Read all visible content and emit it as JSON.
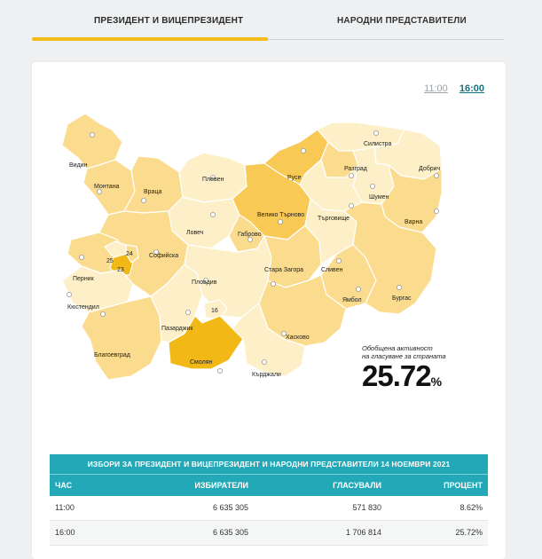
{
  "tabs": [
    {
      "label": "ПРЕЗИДЕНТ И ВИЦЕПРЕЗИДЕНТ",
      "active": true
    },
    {
      "label": "НАРОДНИ ПРЕДСТАВИТЕЛИ",
      "active": false
    }
  ],
  "time_switch": {
    "option_1": "11:00",
    "option_2": "16:00",
    "selected": "16:00"
  },
  "map": {
    "regions": {
      "vidin": "Видин",
      "montana": "Монтана",
      "vratsa": "Враца",
      "pleven": "Плевен",
      "ruse": "Русе",
      "silistra": "Силистра",
      "razgrad": "Разград",
      "dobrich": "Добрич",
      "shumen": "Шумен",
      "targovishte": "Търговище",
      "varna": "Варна",
      "veliko_tarnovo": "Велико Търново",
      "lovech": "Ловеч",
      "gabrovo": "Габрово",
      "sofiyska": "Софийска",
      "pernik": "Перник",
      "kyustendil": "Кюстендил",
      "plovdiv": "Пловдив",
      "stara_zagora": "Стара Загора",
      "sliven": "Сливен",
      "yambol": "Ямбол",
      "burgas": "Бургас",
      "pazardzhik": "Пазарджик",
      "blagoevgrad": "Благоевград",
      "smolyan": "Смолян",
      "haskovo": "Хасково",
      "kardzhali": "Кърджали"
    },
    "district_numbers": {
      "sofia_25": "25",
      "sofia_24": "24",
      "sofia_23": "23",
      "plovdiv_16": "16"
    },
    "colors": {
      "light": "#fdf0c8",
      "medium": "#fbdc8e",
      "dark": "#f8c955",
      "darkest": "#f2b916"
    }
  },
  "turnout": {
    "caption_line1": "Обобщена активност",
    "caption_line2": "на гласуване за страната",
    "value": "25.72",
    "unit": "%"
  },
  "table": {
    "title": "ИЗБОРИ ЗА ПРЕЗИДЕНТ И ВИЦЕПРЕЗИДЕНТ И НАРОДНИ ПРЕДСТАВИТЕЛИ 14 НОЕМВРИ 2021",
    "headers": [
      "ЧАС",
      "ИЗБИРАТЕЛИ",
      "ГЛАСУВАЛИ",
      "ПРОЦЕНТ"
    ],
    "rows": [
      [
        "11:00",
        "6 635 305",
        "571 830",
        "8.62%"
      ],
      [
        "16:00",
        "6 635 305",
        "1 706 814",
        "25.72%"
      ]
    ],
    "accent_color": "#22a8b6"
  }
}
